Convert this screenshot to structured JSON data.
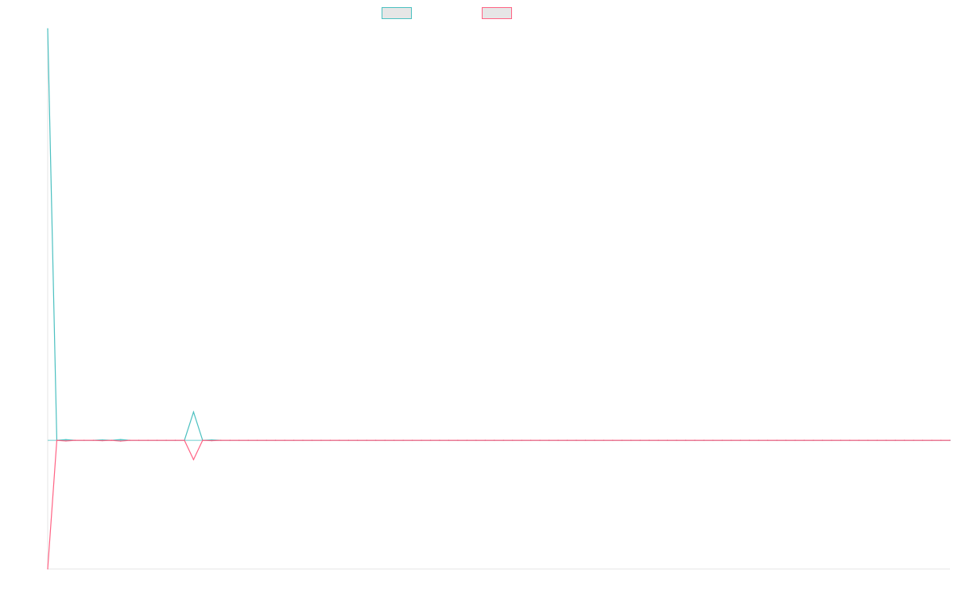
{
  "chart_data": {
    "type": "line",
    "title": "",
    "xlabel": "",
    "ylabel": "",
    "x": [
      0,
      1,
      2,
      3,
      4,
      5,
      6,
      7,
      8,
      9,
      10,
      11,
      12,
      13,
      14,
      15,
      16,
      17,
      18,
      19,
      20,
      21,
      22,
      23,
      24,
      25,
      26,
      27,
      28,
      29,
      30,
      31,
      32,
      33,
      34,
      35,
      36,
      37,
      38,
      39,
      40,
      41,
      42,
      43,
      44,
      45,
      46,
      47,
      48,
      49,
      50,
      51,
      52,
      53,
      54,
      55,
      56,
      57,
      58,
      59,
      60,
      61,
      62,
      63,
      64,
      65,
      66,
      67,
      68,
      69,
      70,
      71,
      72,
      73,
      74,
      75,
      76,
      77,
      78,
      79,
      80,
      81,
      82,
      83,
      84,
      85,
      86,
      87,
      88,
      89,
      90,
      91,
      92,
      93,
      94,
      95,
      96,
      97,
      98,
      99
    ],
    "xlim": [
      0,
      99
    ],
    "ylim": [
      -100,
      320
    ],
    "grid": false,
    "legend_position": "top-center",
    "series": [
      {
        "name": "",
        "color": "#4bc0c0",
        "values": [
          320,
          0,
          0.5,
          0,
          0,
          0,
          0.3,
          0,
          0.6,
          0,
          0,
          0,
          0,
          0,
          0,
          0,
          22,
          0,
          0.3,
          0,
          0,
          0,
          0,
          0,
          0,
          0,
          0,
          0,
          0,
          0,
          0,
          0,
          0,
          0,
          0,
          0,
          0,
          0,
          0,
          0,
          0,
          0,
          0,
          0,
          0,
          0,
          0,
          0,
          0,
          0,
          0,
          0,
          0,
          0,
          0,
          0,
          0,
          0,
          0,
          0,
          0,
          0,
          0,
          0,
          0,
          0,
          0,
          0,
          0,
          0,
          0,
          0,
          0,
          0,
          0,
          0,
          0,
          0,
          0,
          0,
          0,
          0,
          0,
          0,
          0,
          0,
          0,
          0,
          0,
          0,
          0,
          0,
          0,
          0,
          0,
          0,
          0,
          0,
          0,
          0
        ]
      },
      {
        "name": "",
        "color": "#ff6384",
        "values": [
          -100,
          0,
          -0.5,
          0,
          0,
          0,
          -0.3,
          0,
          -0.6,
          0,
          0,
          0,
          0,
          0,
          0,
          0,
          -15,
          0,
          -0.3,
          0,
          0,
          0,
          0,
          0,
          0,
          0,
          0,
          0,
          0,
          0,
          0,
          0,
          0,
          0,
          0,
          0,
          0,
          0,
          0,
          0,
          0,
          0,
          0,
          0,
          0,
          0,
          0,
          0,
          0,
          0,
          0,
          0,
          0,
          0,
          0,
          0,
          0,
          0,
          0,
          0,
          0,
          0,
          0,
          0,
          0,
          0,
          0,
          0,
          0,
          0,
          0,
          0,
          0,
          0,
          0,
          0,
          0,
          0,
          0,
          0,
          0,
          0,
          0,
          0,
          0,
          0,
          0,
          0,
          0,
          0,
          0,
          0,
          0,
          0,
          0,
          0,
          0,
          0,
          0,
          0
        ]
      }
    ]
  },
  "legend": {
    "items": [
      {
        "label": "",
        "color": "#4bc0c0"
      },
      {
        "label": "",
        "color": "#ff6384"
      }
    ]
  }
}
